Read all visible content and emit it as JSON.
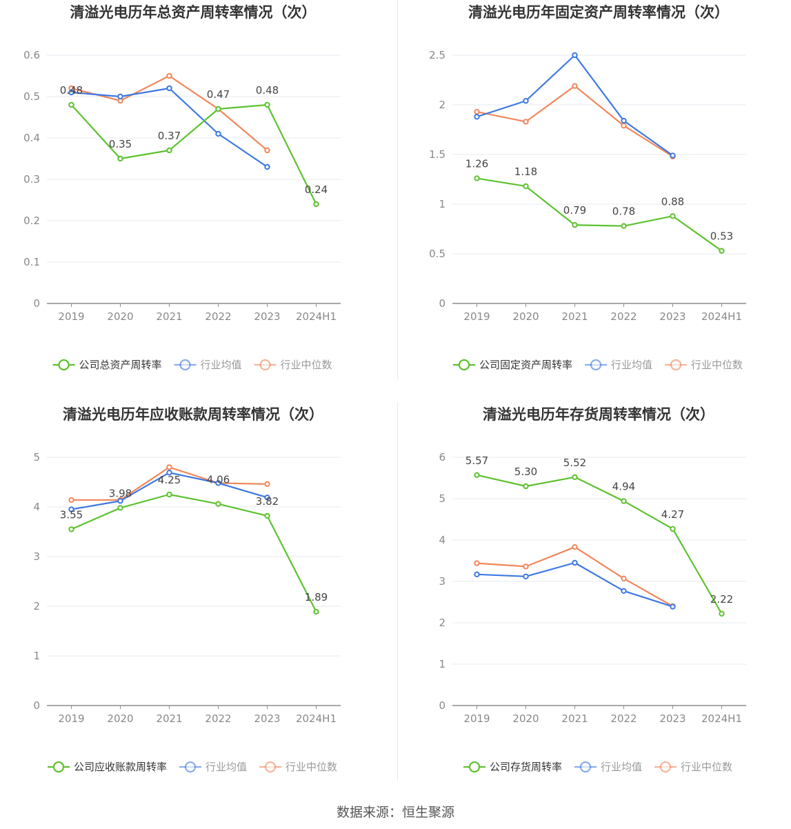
{
  "source_text": "数据来源：恒生聚源",
  "colors": {
    "company": "#5cc22e",
    "avg": "#3d78e3",
    "median": "#f2865b",
    "grid": "#e6e8ef",
    "axis": "#8b8b8b"
  },
  "chart_data": [
    {
      "type": "line",
      "title": "清溢光电历年总资产周转率情况（次）",
      "categories": [
        "2019",
        "2020",
        "2021",
        "2022",
        "2023",
        "2024H1"
      ],
      "ylim": [
        0,
        0.6
      ],
      "yticks": [
        "0",
        "0.1",
        "0.2",
        "0.3",
        "0.4",
        "0.5",
        "0.6"
      ],
      "yticks_values": [
        0,
        0.1,
        0.2,
        0.3,
        0.4,
        0.5,
        0.6
      ],
      "grid": true,
      "legend_position": "bottom",
      "series": [
        {
          "name": "公司总资产周转率",
          "role": "company",
          "values": [
            0.48,
            0.35,
            0.37,
            0.47,
            0.48,
            0.24
          ],
          "data_labels": [
            "0.48",
            "0.35",
            "0.37",
            "0.47",
            "0.48",
            "0.24"
          ]
        },
        {
          "name": "行业均值",
          "role": "avg",
          "values": [
            0.51,
            0.5,
            0.52,
            0.41,
            0.33,
            null
          ]
        },
        {
          "name": "行业中位数",
          "role": "median",
          "values": [
            0.52,
            0.49,
            0.55,
            0.47,
            0.37,
            null
          ]
        }
      ]
    },
    {
      "type": "line",
      "title": "清溢光电历年固定资产周转率情况（次）",
      "categories": [
        "2019",
        "2020",
        "2021",
        "2022",
        "2023",
        "2024H1"
      ],
      "ylim": [
        0,
        2.5
      ],
      "yticks": [
        "0",
        "0.5",
        "1",
        "1.5",
        "2",
        "2.5"
      ],
      "yticks_values": [
        0,
        0.5,
        1,
        1.5,
        2,
        2.5
      ],
      "grid": true,
      "legend_position": "bottom",
      "series": [
        {
          "name": "公司固定资产周转率",
          "role": "company",
          "values": [
            1.26,
            1.18,
            0.79,
            0.78,
            0.88,
            0.53
          ],
          "data_labels": [
            "1.26",
            "1.18",
            "0.79",
            "0.78",
            "0.88",
            "0.53"
          ]
        },
        {
          "name": "行业均值",
          "role": "avg",
          "values": [
            1.88,
            2.04,
            2.5,
            1.84,
            1.49,
            null
          ]
        },
        {
          "name": "行业中位数",
          "role": "median",
          "values": [
            1.93,
            1.83,
            2.19,
            1.79,
            1.48,
            null
          ]
        }
      ]
    },
    {
      "type": "line",
      "title": "清溢光电历年应收账款周转率情况（次）",
      "categories": [
        "2019",
        "2020",
        "2021",
        "2022",
        "2023",
        "2024H1"
      ],
      "ylim": [
        0,
        5
      ],
      "yticks": [
        "0",
        "1",
        "2",
        "3",
        "4",
        "5"
      ],
      "yticks_values": [
        0,
        1,
        2,
        3,
        4,
        5
      ],
      "grid": true,
      "legend_position": "bottom",
      "series": [
        {
          "name": "公司应收账款周转率",
          "role": "company",
          "values": [
            3.55,
            3.98,
            4.25,
            4.06,
            3.82,
            1.89
          ],
          "data_labels": [
            "3.55",
            "3.98",
            "4.25",
            "4.06",
            "3.82",
            "1.89"
          ]
        },
        {
          "name": "行业均值",
          "role": "avg",
          "values": [
            3.95,
            4.12,
            4.69,
            4.48,
            4.19,
            null
          ]
        },
        {
          "name": "行业中位数",
          "role": "median",
          "values": [
            4.14,
            4.14,
            4.8,
            4.48,
            4.46,
            null
          ]
        }
      ]
    },
    {
      "type": "line",
      "title": "清溢光电历年存货周转率情况（次）",
      "categories": [
        "2019",
        "2020",
        "2021",
        "2022",
        "2023",
        "2024H1"
      ],
      "ylim": [
        0,
        6
      ],
      "yticks": [
        "0",
        "1",
        "2",
        "3",
        "4",
        "5",
        "6"
      ],
      "yticks_values": [
        0,
        1,
        2,
        3,
        4,
        5,
        6
      ],
      "grid": true,
      "legend_position": "bottom",
      "series": [
        {
          "name": "公司存货周转率",
          "role": "company",
          "values": [
            5.57,
            5.3,
            5.52,
            4.94,
            4.27,
            2.22
          ],
          "data_labels": [
            "5.57",
            "5.30",
            "5.52",
            "4.94",
            "4.27",
            "2.22"
          ]
        },
        {
          "name": "行业均值",
          "role": "avg",
          "values": [
            3.17,
            3.12,
            3.45,
            2.77,
            2.39,
            null
          ]
        },
        {
          "name": "行业中位数",
          "role": "median",
          "values": [
            3.44,
            3.36,
            3.83,
            3.07,
            2.4,
            null
          ]
        }
      ]
    }
  ]
}
